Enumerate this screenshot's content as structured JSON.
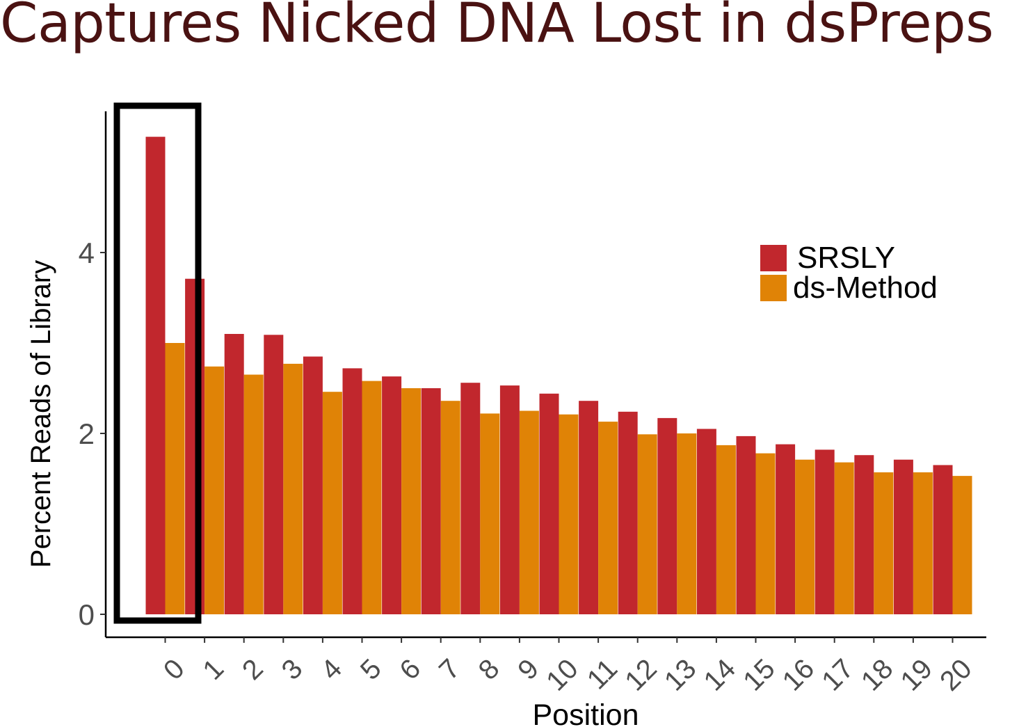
{
  "title": "Captures Nicked DNA Lost in dsPreps",
  "colors": {
    "title": "#4a1212",
    "axis_text": "#4d4d4d",
    "axis_line": "#000000",
    "highlight_box": "#000000"
  },
  "chart_data": {
    "type": "bar",
    "title": "Captures Nicked DNA Lost in dsPreps",
    "xlabel": "Position",
    "ylabel": "Percent Reads of Library",
    "categories": [
      "0",
      "1",
      "2",
      "3",
      "4",
      "5",
      "6",
      "7",
      "8",
      "9",
      "10",
      "11",
      "12",
      "13",
      "14",
      "15",
      "16",
      "17",
      "18",
      "19",
      "20"
    ],
    "series": [
      {
        "name": "SRSLY",
        "color": "#c1272d",
        "values": [
          5.28,
          3.71,
          3.1,
          3.09,
          2.85,
          2.72,
          2.63,
          2.5,
          2.56,
          2.53,
          2.44,
          2.36,
          2.24,
          2.17,
          2.05,
          1.97,
          1.88,
          1.82,
          1.76,
          1.71,
          1.65
        ]
      },
      {
        "name": "ds-Method",
        "color": "#e08306",
        "values": [
          3.0,
          2.74,
          2.65,
          2.77,
          2.46,
          2.58,
          2.5,
          2.36,
          2.22,
          2.25,
          2.21,
          2.13,
          1.99,
          2.0,
          1.87,
          1.78,
          1.71,
          1.68,
          1.57,
          1.57,
          1.53
        ]
      }
    ],
    "yticks": [
      0,
      2,
      4
    ],
    "ylim": [
      -0.25,
      5.6
    ],
    "grid": false,
    "legend": {
      "position": "right"
    },
    "highlight": {
      "category": "0",
      "shape": "rectangle outline"
    }
  }
}
